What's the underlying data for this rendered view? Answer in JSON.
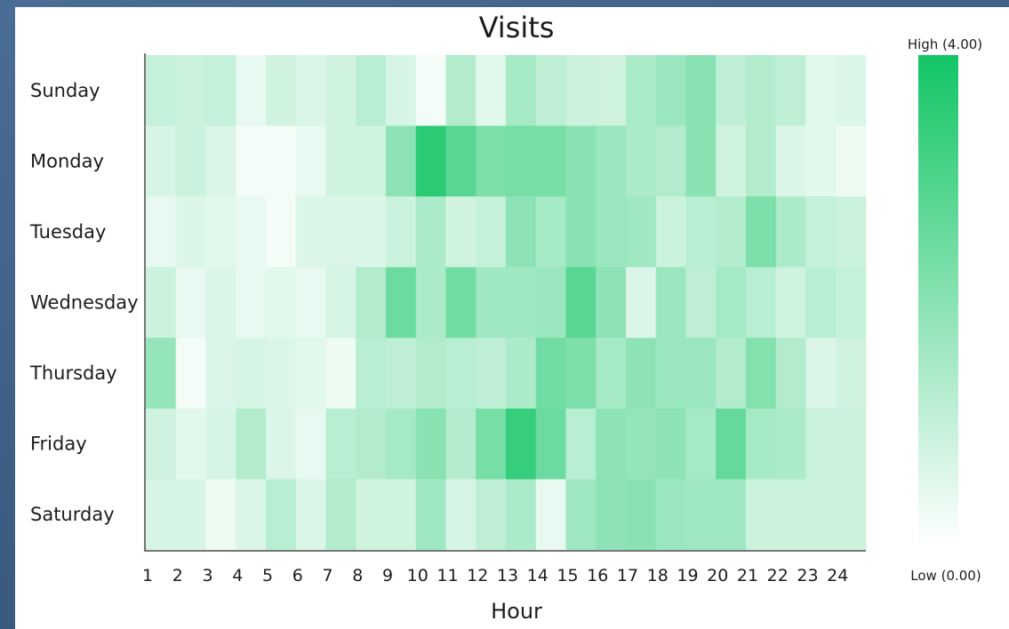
{
  "chart_data": {
    "type": "heatmap",
    "title": "Visits",
    "xlabel": "Hour",
    "ylabel": "",
    "x_categories": [
      "1",
      "2",
      "3",
      "4",
      "5",
      "6",
      "7",
      "8",
      "9",
      "10",
      "11",
      "12",
      "13",
      "14",
      "15",
      "16",
      "17",
      "18",
      "19",
      "20",
      "21",
      "22",
      "23",
      "24"
    ],
    "y_categories": [
      "Sunday",
      "Monday",
      "Tuesday",
      "Wednesday",
      "Thursday",
      "Friday",
      "Saturday"
    ],
    "values": [
      [
        1.0,
        0.9,
        1.0,
        0.4,
        0.8,
        0.6,
        0.8,
        1.2,
        0.7,
        0.2,
        1.3,
        0.5,
        1.5,
        1.1,
        0.9,
        0.8,
        1.4,
        1.7,
        2.0,
        1.1,
        1.3,
        1.1,
        0.5,
        0.6
      ],
      [
        0.7,
        0.9,
        0.6,
        0.2,
        0.2,
        0.4,
        0.8,
        0.8,
        1.9,
        3.6,
        2.8,
        2.2,
        2.3,
        2.3,
        2.0,
        1.7,
        1.4,
        1.3,
        2.0,
        0.8,
        1.3,
        0.6,
        0.5,
        0.3
      ],
      [
        0.4,
        0.6,
        0.5,
        0.4,
        0.2,
        0.6,
        0.6,
        0.6,
        0.9,
        1.4,
        0.8,
        1.0,
        1.9,
        1.5,
        2.0,
        1.7,
        1.6,
        0.9,
        1.2,
        1.3,
        2.2,
        1.4,
        1.0,
        0.9
      ],
      [
        0.9,
        0.4,
        0.6,
        0.4,
        0.5,
        0.4,
        0.7,
        1.3,
        2.5,
        1.4,
        2.4,
        1.6,
        1.6,
        1.7,
        2.8,
        1.9,
        0.6,
        1.7,
        1.1,
        1.5,
        1.2,
        0.8,
        1.2,
        1.0
      ],
      [
        1.8,
        0.2,
        0.6,
        0.7,
        0.6,
        0.5,
        0.3,
        1.2,
        1.1,
        1.3,
        1.2,
        1.1,
        1.4,
        2.4,
        2.2,
        1.5,
        1.9,
        1.7,
        1.7,
        1.3,
        2.1,
        1.3,
        0.6,
        0.8
      ],
      [
        0.8,
        0.5,
        0.7,
        1.3,
        0.6,
        0.4,
        1.2,
        1.3,
        1.5,
        2.0,
        1.3,
        2.3,
        3.4,
        2.5,
        1.2,
        1.9,
        1.8,
        1.9,
        1.5,
        2.6,
        1.5,
        1.4,
        0.9,
        0.9
      ],
      [
        0.7,
        0.7,
        0.3,
        0.6,
        1.2,
        0.6,
        1.3,
        0.8,
        0.8,
        1.6,
        0.7,
        1.1,
        1.4,
        0.4,
        1.6,
        1.9,
        2.0,
        1.7,
        1.6,
        1.6,
        0.9,
        0.9,
        0.9,
        0.9
      ]
    ],
    "scale": {
      "min": 0,
      "max": 4,
      "high_label": "High (4.00)",
      "low_label": "Low (0.00)",
      "color_low": "#ffffff",
      "color_high": "#12c565"
    },
    "grid": false,
    "legend": "right"
  }
}
